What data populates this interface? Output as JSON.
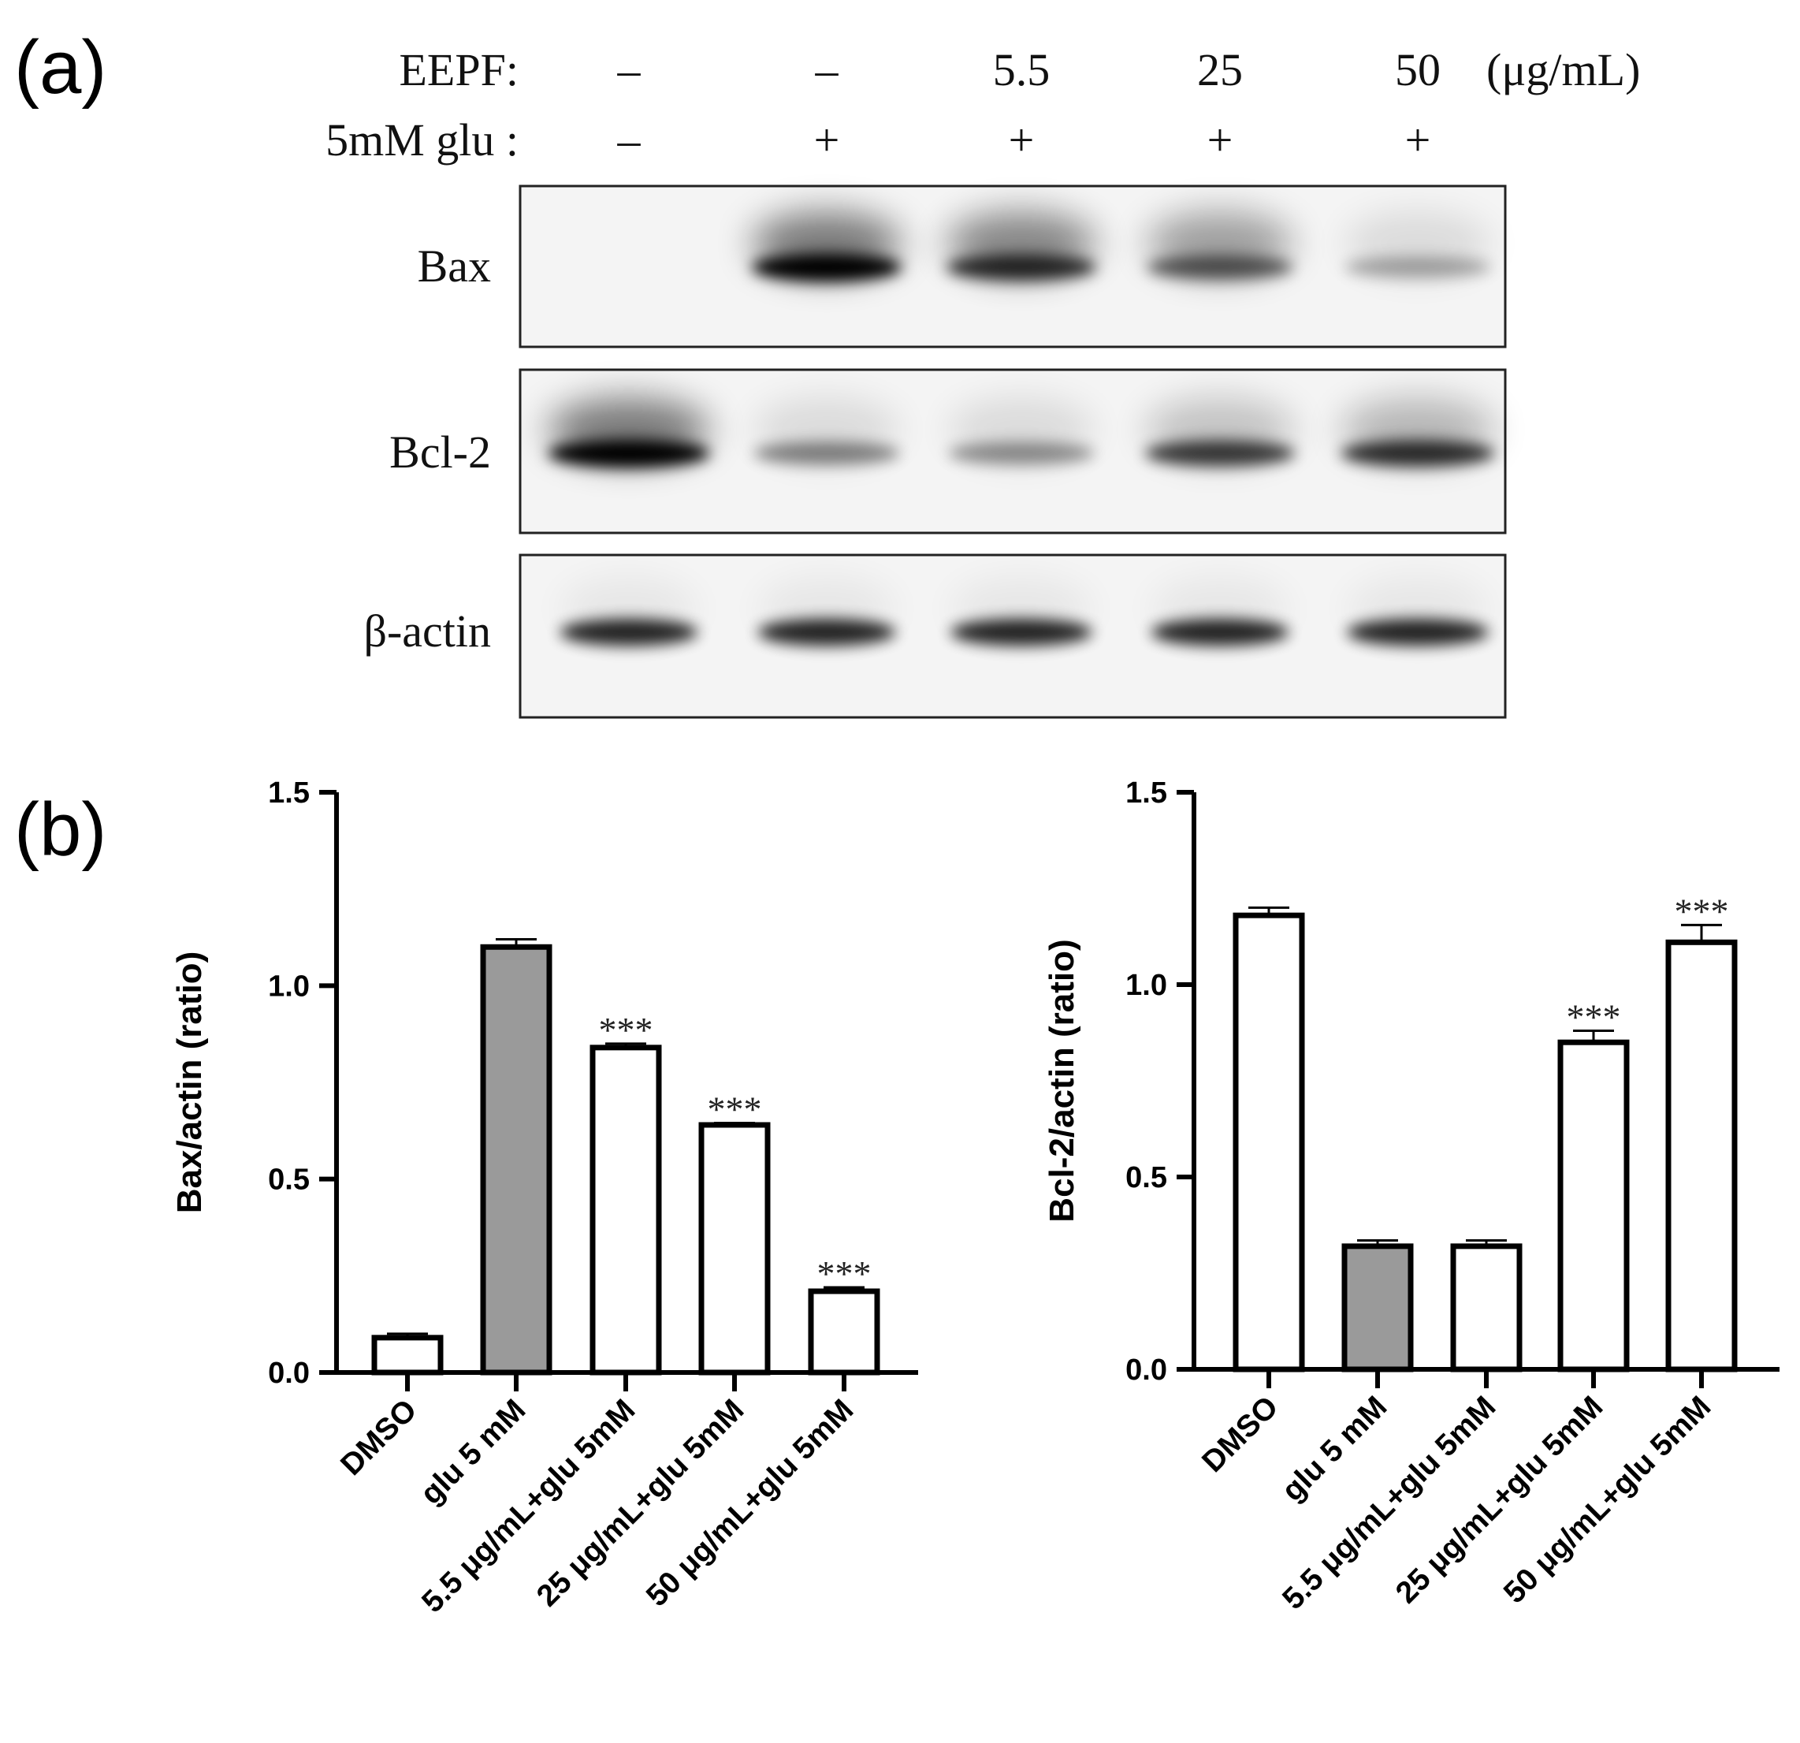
{
  "panels": [
    "(a)",
    "(b)"
  ],
  "blot": {
    "header_rows": [
      {
        "label": "EEPF:",
        "lanes": [
          "–",
          "–",
          "5.5",
          "25",
          "50"
        ],
        "unit": "(μg/mL)"
      },
      {
        "label": "5mM glu :",
        "lanes": [
          "–",
          "+",
          "+",
          "+",
          "+"
        ]
      }
    ],
    "rows": [
      "Bax",
      "Bcl-2",
      "β-actin"
    ]
  },
  "chart_data": [
    {
      "type": "bar",
      "y_label": "Bax/actin (ratio)",
      "categories": [
        "DMSO",
        "glu 5 mM",
        "5.5 μg/mL+glu 5mM",
        "25 μg/mL+glu 5mM",
        "50 μg/mL+glu 5mM"
      ],
      "values": [
        0.09,
        1.1,
        0.84,
        0.64,
        0.21
      ],
      "errors": [
        0.01,
        0.02,
        0.01,
        0.005,
        0.01
      ],
      "colors": [
        "#ffffff",
        "#9a9a9a",
        "#ffffff",
        "#ffffff",
        "#ffffff"
      ],
      "annotations": [
        null,
        null,
        "***",
        "***",
        "***"
      ],
      "ylim": [
        0,
        1.5
      ],
      "yticks": [
        {
          "value": 0,
          "label": "0.0"
        },
        0.5,
        {
          "value": 1,
          "label": "1.0"
        },
        1.5
      ]
    },
    {
      "type": "bar",
      "y_label": "Bcl-2/actin (ratio)",
      "categories": [
        "DMSO",
        "glu 5 mM",
        "5.5 μg/mL+glu 5mM",
        "25 μg/mL+glu 5mM",
        "50 μg/mL+glu 5mM"
      ],
      "values": [
        1.18,
        0.32,
        0.32,
        0.85,
        1.11
      ],
      "errors": [
        0.02,
        0.015,
        0.015,
        0.03,
        0.045
      ],
      "colors": [
        "#ffffff",
        "#9a9a9a",
        "#ffffff",
        "#ffffff",
        "#ffffff"
      ],
      "annotations": [
        null,
        null,
        null,
        "***",
        "***"
      ],
      "ylim": [
        0,
        1.5
      ],
      "yticks": [
        {
          "value": 0,
          "label": "0.0"
        },
        0.5,
        {
          "value": 1,
          "label": "1.0"
        },
        1.5
      ]
    }
  ]
}
